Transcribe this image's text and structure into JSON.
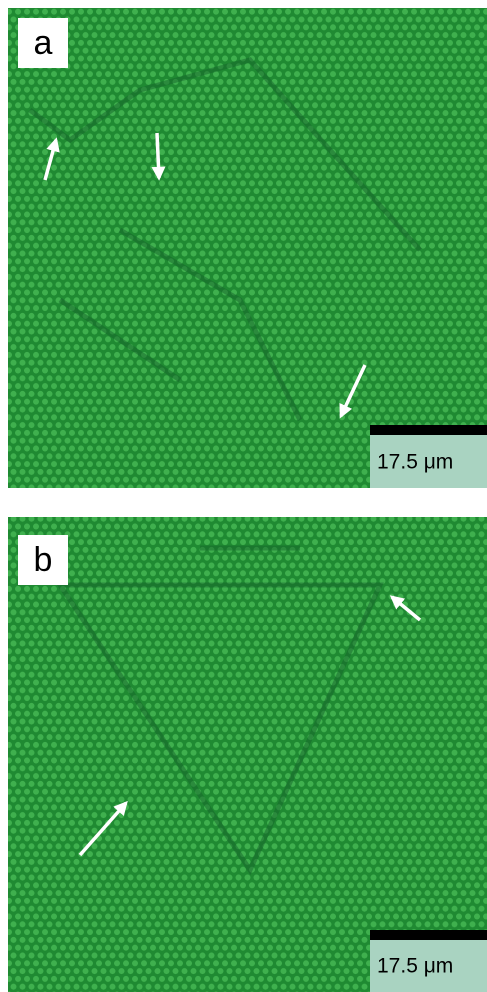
{
  "panels": [
    {
      "label": "a",
      "scale_bar": "17.5 μm"
    },
    {
      "label": "b",
      "scale_bar": "17.5 μm"
    }
  ]
}
